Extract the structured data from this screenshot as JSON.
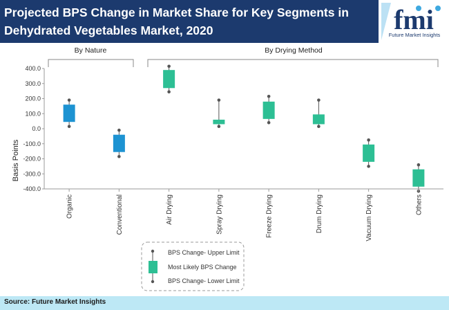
{
  "header": {
    "title_line1": "Projected BPS Change in Market Share for Key Segments in",
    "title_line2": "Dehydrated Vegetables Market, 2020"
  },
  "logo": {
    "text": "fmi",
    "subtitle": "Future Market Insights"
  },
  "footer": {
    "source": "Source: Future Market Insights"
  },
  "colors": {
    "nature": "#1d93d2",
    "drying": "#2dbf94",
    "header_bg": "#1c3a6e",
    "footer_bg": "#bde8f5"
  },
  "legend": {
    "upper": "BPS Change- Upper Limit",
    "likely": "Most Likely BPS Change",
    "lower": "BPS Change- Lower Limit"
  },
  "chart_data": {
    "type": "box",
    "ylabel": "Basis Points",
    "ylim": [
      -400,
      400
    ],
    "yticks": [
      "400.0",
      "300.0",
      "200.0",
      "100.0",
      "0.0",
      "-100.0",
      "-200.0",
      "-300.0",
      "-400.0"
    ],
    "groups": [
      {
        "label": "By Nature",
        "categories": [
          "Organic",
          "Conventional"
        ]
      },
      {
        "label": "By Drying Method",
        "categories": [
          "Air Drying",
          "Spray Drying",
          "Freeze Drying",
          "Drum Drying",
          "Vacuum Drying",
          "Others"
        ]
      }
    ],
    "categories": [
      "Organic",
      "Conventional",
      "Air Drying",
      "Spray Drying",
      "Freeze Drying",
      "Drum Drying",
      "Vacuum Drying",
      "Others"
    ],
    "series": [
      {
        "category": "Organic",
        "group": "nature",
        "upper": 190,
        "box_high": 160,
        "box_low": 45,
        "lower": 15
      },
      {
        "category": "Conventional",
        "group": "nature",
        "upper": -10,
        "box_high": -40,
        "box_low": -155,
        "lower": -185
      },
      {
        "category": "Air Drying",
        "group": "drying",
        "upper": 415,
        "box_high": 390,
        "box_low": 270,
        "lower": 245
      },
      {
        "category": "Spray Drying",
        "group": "drying",
        "upper": 190,
        "box_high": 60,
        "box_low": 30,
        "lower": 15
      },
      {
        "category": "Freeze Drying",
        "group": "drying",
        "upper": 215,
        "box_high": 180,
        "box_low": 65,
        "lower": 40
      },
      {
        "category": "Drum Drying",
        "group": "drying",
        "upper": 190,
        "box_high": 95,
        "box_low": 30,
        "lower": 15
      },
      {
        "category": "Vacuum Drying",
        "group": "drying",
        "upper": -75,
        "box_high": -105,
        "box_low": -220,
        "lower": -250
      },
      {
        "category": "Others",
        "group": "drying",
        "upper": -240,
        "box_high": -270,
        "box_low": -385,
        "lower": -415
      }
    ]
  }
}
